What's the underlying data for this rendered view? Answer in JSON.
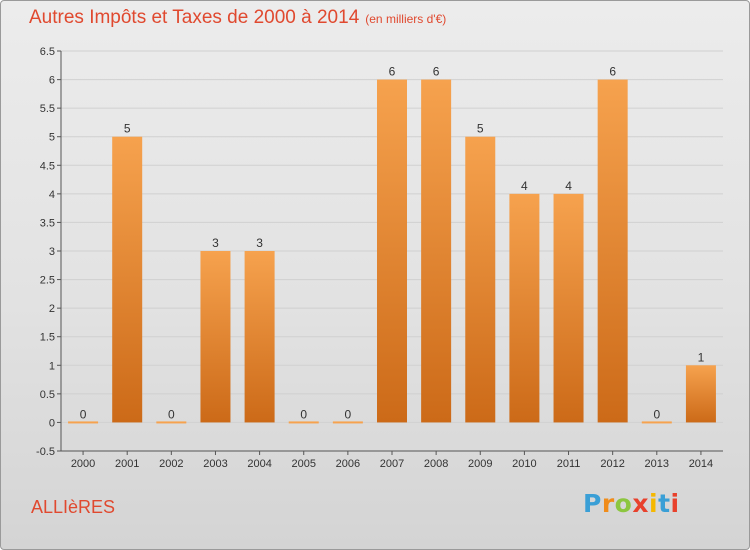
{
  "header": {
    "title": "Autres Impôts et Taxes de 2000 à 2014",
    "subtitle": "(en milliers d'€)"
  },
  "footer": {
    "location": "ALLIèRES",
    "logo": {
      "letters": [
        "P",
        "r",
        "o",
        "x",
        "i",
        "t",
        "i"
      ],
      "colors": [
        "#3a9fd6",
        "#f08c1a",
        "#8cc63f",
        "#e8412c",
        "#f5b800",
        "#3a9fd6",
        "#e8412c"
      ]
    }
  },
  "colors": {
    "bar_light": "#f6a24e",
    "bar_dark": "#cc6a18",
    "axis": "#555555",
    "grid": "#d0d0d0"
  },
  "chart_data": {
    "type": "bar",
    "title": "Autres Impôts et Taxes de 2000 à 2014",
    "subtitle": "(en milliers d'€)",
    "categories": [
      "2000",
      "2001",
      "2002",
      "2003",
      "2004",
      "2005",
      "2006",
      "2007",
      "2008",
      "2009",
      "2010",
      "2011",
      "2012",
      "2013",
      "2014"
    ],
    "values": [
      0,
      5,
      0,
      3,
      3,
      0,
      0,
      6,
      6,
      5,
      4,
      4,
      6,
      0,
      1
    ],
    "data_labels": [
      "0",
      "5",
      "0",
      "3",
      "3",
      "0",
      "0",
      "6",
      "6",
      "5",
      "4",
      "4",
      "6",
      "0",
      "1"
    ],
    "yticks": [
      "6.5",
      "6",
      "5.5",
      "5",
      "4.5",
      "4",
      "3.5",
      "3",
      "2.5",
      "2",
      "1.5",
      "1",
      "0.5",
      "0",
      "-0.5"
    ],
    "ylim": [
      -0.5,
      6.5
    ],
    "xlabel": "",
    "ylabel": "",
    "grid": true
  }
}
